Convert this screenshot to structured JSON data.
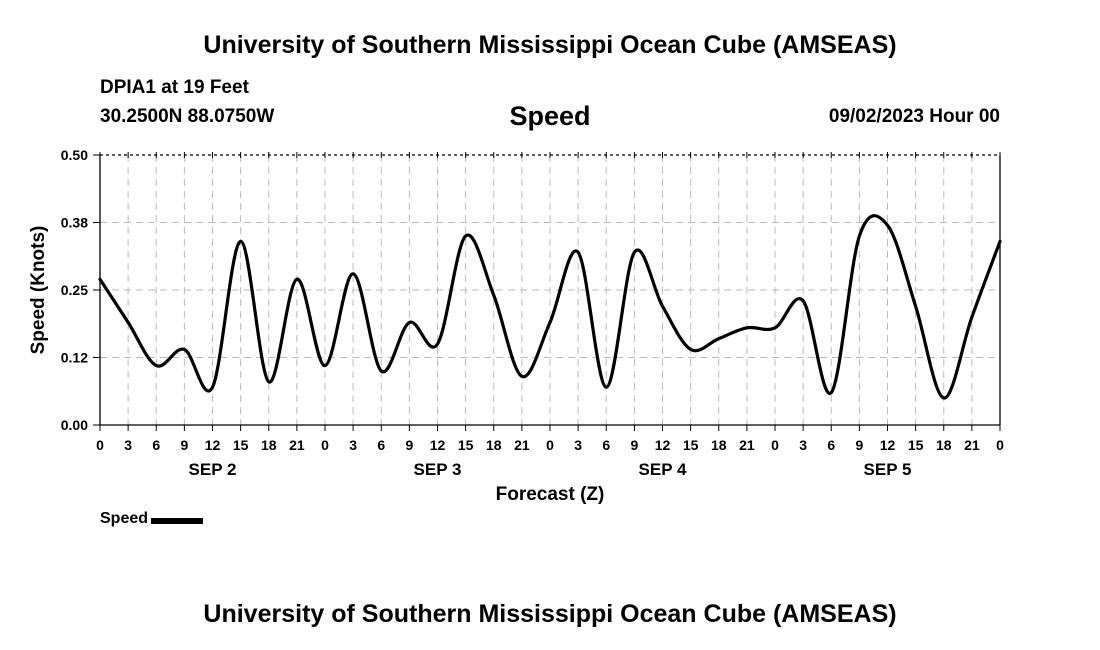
{
  "header": {
    "title": "University of Southern Mississippi Ocean Cube (AMSEAS)",
    "station": "DPIA1 at 19 Feet",
    "coordinates": "30.2500N  88.0750W",
    "variable": "Speed",
    "datetime": "09/02/2023 Hour 00"
  },
  "footer": {
    "title": "University of Southern Mississippi Ocean Cube (AMSEAS)"
  },
  "legend": {
    "label": "Speed",
    "color": "#000000"
  },
  "chart_data": {
    "type": "line",
    "title": "Speed",
    "xlabel": "Forecast (Z)",
    "ylabel": "Speed (Knots)",
    "ylim": [
      0,
      0.5
    ],
    "yticks": [
      "0.00",
      "0.12",
      "0.25",
      "0.38",
      "0.50"
    ],
    "xlim": [
      0,
      96
    ],
    "xtick_step_hours": 3,
    "xtick_labels": [
      "0",
      "3",
      "6",
      "9",
      "12",
      "15",
      "18",
      "21",
      "0",
      "3",
      "6",
      "9",
      "12",
      "15",
      "18",
      "21",
      "0",
      "3",
      "6",
      "9",
      "12",
      "15",
      "18",
      "21",
      "0",
      "3",
      "6",
      "9",
      "12",
      "15",
      "18",
      "21",
      "0"
    ],
    "day_labels": [
      {
        "label": "SEP 2",
        "hour": 12
      },
      {
        "label": "SEP 3",
        "hour": 36
      },
      {
        "label": "SEP 4",
        "hour": 60
      },
      {
        "label": "SEP 5",
        "hour": 84
      }
    ],
    "grid": true,
    "series": [
      {
        "name": "Speed",
        "color": "#000000",
        "x": [
          0,
          3,
          6,
          9,
          12,
          15,
          18,
          21,
          24,
          27,
          30,
          33,
          36,
          39,
          42,
          45,
          48,
          51,
          54,
          57,
          60,
          63,
          66,
          69,
          72,
          75,
          78,
          81,
          84,
          87,
          90,
          93,
          96
        ],
        "values": [
          0.27,
          0.19,
          0.11,
          0.14,
          0.07,
          0.34,
          0.08,
          0.27,
          0.11,
          0.28,
          0.1,
          0.19,
          0.15,
          0.35,
          0.24,
          0.09,
          0.19,
          0.32,
          0.07,
          0.32,
          0.22,
          0.14,
          0.16,
          0.18,
          0.18,
          0.23,
          0.06,
          0.35,
          0.37,
          0.22,
          0.05,
          0.2,
          0.34
        ]
      }
    ]
  }
}
